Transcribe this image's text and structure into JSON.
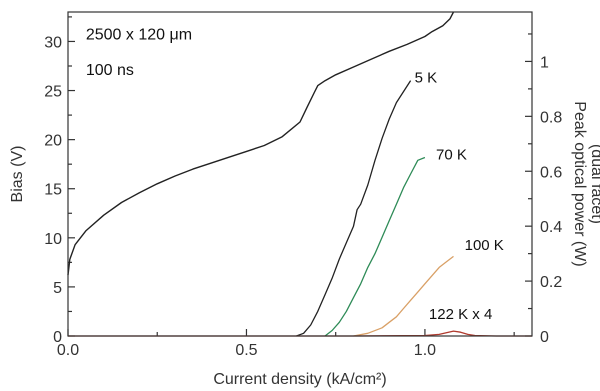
{
  "chart_data": {
    "type": "line",
    "title": "",
    "xlabel": "Current density (kA/cm²)",
    "ylabel_left": "Bias (V)",
    "ylabel_right": [
      "Peak optical power (W)",
      "(dual facet)"
    ],
    "xlim": [
      0,
      1.3
    ],
    "ylim_left": [
      0,
      33
    ],
    "ylim_right": [
      0,
      1.18
    ],
    "x_ticks": [
      0,
      0.25,
      0.5,
      0.75,
      1.0,
      1.25
    ],
    "x_tick_labels": [
      "0.0",
      "",
      "0.5",
      "",
      "1.0",
      ""
    ],
    "y_left_ticks": [
      0,
      2.5,
      5,
      7.5,
      10,
      12.5,
      15,
      17.5,
      20,
      22.5,
      25,
      27.5,
      30,
      32.5
    ],
    "y_left_tick_labels": [
      "0",
      "",
      "5",
      "",
      "10",
      "",
      "15",
      "",
      "20",
      "",
      "25",
      "",
      "30",
      ""
    ],
    "y_right_ticks": [
      0,
      0.1,
      0.2,
      0.3,
      0.4,
      0.5,
      0.6,
      0.7,
      0.8,
      0.9,
      1.0,
      1.1
    ],
    "y_right_tick_labels": [
      "0",
      "",
      "0.2",
      "",
      "0.4",
      "",
      "0.6",
      "",
      "0.8",
      "",
      "1",
      ""
    ],
    "annotations": [
      {
        "text": "2500 x 120 μm",
        "x": 0.05,
        "y": 30.2
      },
      {
        "text": "100 ns",
        "x": 0.05,
        "y": 26.6
      }
    ],
    "series": [
      {
        "name": "Bias",
        "axis": "left",
        "color": "#222222",
        "x": [
          0.0,
          0.005,
          0.02,
          0.05,
          0.1,
          0.15,
          0.2,
          0.25,
          0.3,
          0.35,
          0.4,
          0.45,
          0.5,
          0.55,
          0.6,
          0.65,
          0.67,
          0.69,
          0.7,
          0.72,
          0.75,
          0.8,
          0.85,
          0.9,
          0.95,
          1.0,
          1.02,
          1.05,
          1.07,
          1.08
        ],
        "y": [
          6.2,
          7.8,
          9.3,
          10.7,
          12.3,
          13.6,
          14.6,
          15.5,
          16.3,
          17.0,
          17.6,
          18.2,
          18.8,
          19.4,
          20.3,
          21.8,
          23.3,
          24.8,
          25.5,
          26.0,
          26.6,
          27.4,
          28.2,
          29.0,
          29.7,
          30.5,
          31.0,
          31.6,
          32.3,
          33.0
        ]
      },
      {
        "name": "5 K",
        "axis": "right",
        "color": "#222222",
        "x": [
          0.64,
          0.66,
          0.68,
          0.7,
          0.72,
          0.74,
          0.76,
          0.78,
          0.8,
          0.81,
          0.82,
          0.84,
          0.86,
          0.88,
          0.9,
          0.92,
          0.94,
          0.96
        ],
        "y": [
          0.0,
          0.01,
          0.04,
          0.09,
          0.15,
          0.21,
          0.28,
          0.34,
          0.4,
          0.46,
          0.48,
          0.55,
          0.64,
          0.72,
          0.79,
          0.85,
          0.89,
          0.93
        ]
      },
      {
        "name": "70 K",
        "axis": "right",
        "color": "#2e8b57",
        "x": [
          0.72,
          0.74,
          0.76,
          0.78,
          0.8,
          0.82,
          0.84,
          0.86,
          0.88,
          0.9,
          0.92,
          0.94,
          0.96,
          0.98,
          1.0
        ],
        "y": [
          0.0,
          0.02,
          0.05,
          0.09,
          0.14,
          0.19,
          0.25,
          0.3,
          0.36,
          0.42,
          0.48,
          0.54,
          0.59,
          0.64,
          0.65
        ]
      },
      {
        "name": "100 K",
        "axis": "right",
        "color": "#d9a066",
        "x": [
          0.8,
          0.84,
          0.88,
          0.9,
          0.92,
          0.94,
          0.96,
          0.98,
          1.0,
          1.02,
          1.04,
          1.06,
          1.08
        ],
        "y": [
          0.0,
          0.01,
          0.03,
          0.05,
          0.07,
          0.1,
          0.13,
          0.16,
          0.19,
          0.22,
          0.25,
          0.27,
          0.29
        ]
      },
      {
        "name": "122 K x 4",
        "axis": "right",
        "color": "#b03a2e",
        "x": [
          0.0,
          0.2,
          0.4,
          0.6,
          0.8,
          1.0,
          1.04,
          1.06,
          1.08,
          1.1,
          1.12,
          1.14,
          1.2,
          1.3
        ],
        "y": [
          0.0,
          0.0,
          0.0,
          0.0,
          0.0,
          0.002,
          0.006,
          0.012,
          0.018,
          0.014,
          0.006,
          0.002,
          0.0,
          0.0
        ]
      }
    ],
    "series_labels": [
      {
        "text": "5 K",
        "x": 0.96,
        "y": 0.93
      },
      {
        "text": "70 K",
        "x": 1.02,
        "y": 0.65
      },
      {
        "text": "100 K",
        "x": 1.1,
        "y": 0.32
      },
      {
        "text": "122 K x 4",
        "x": 1.0,
        "y": 0.07
      }
    ]
  }
}
